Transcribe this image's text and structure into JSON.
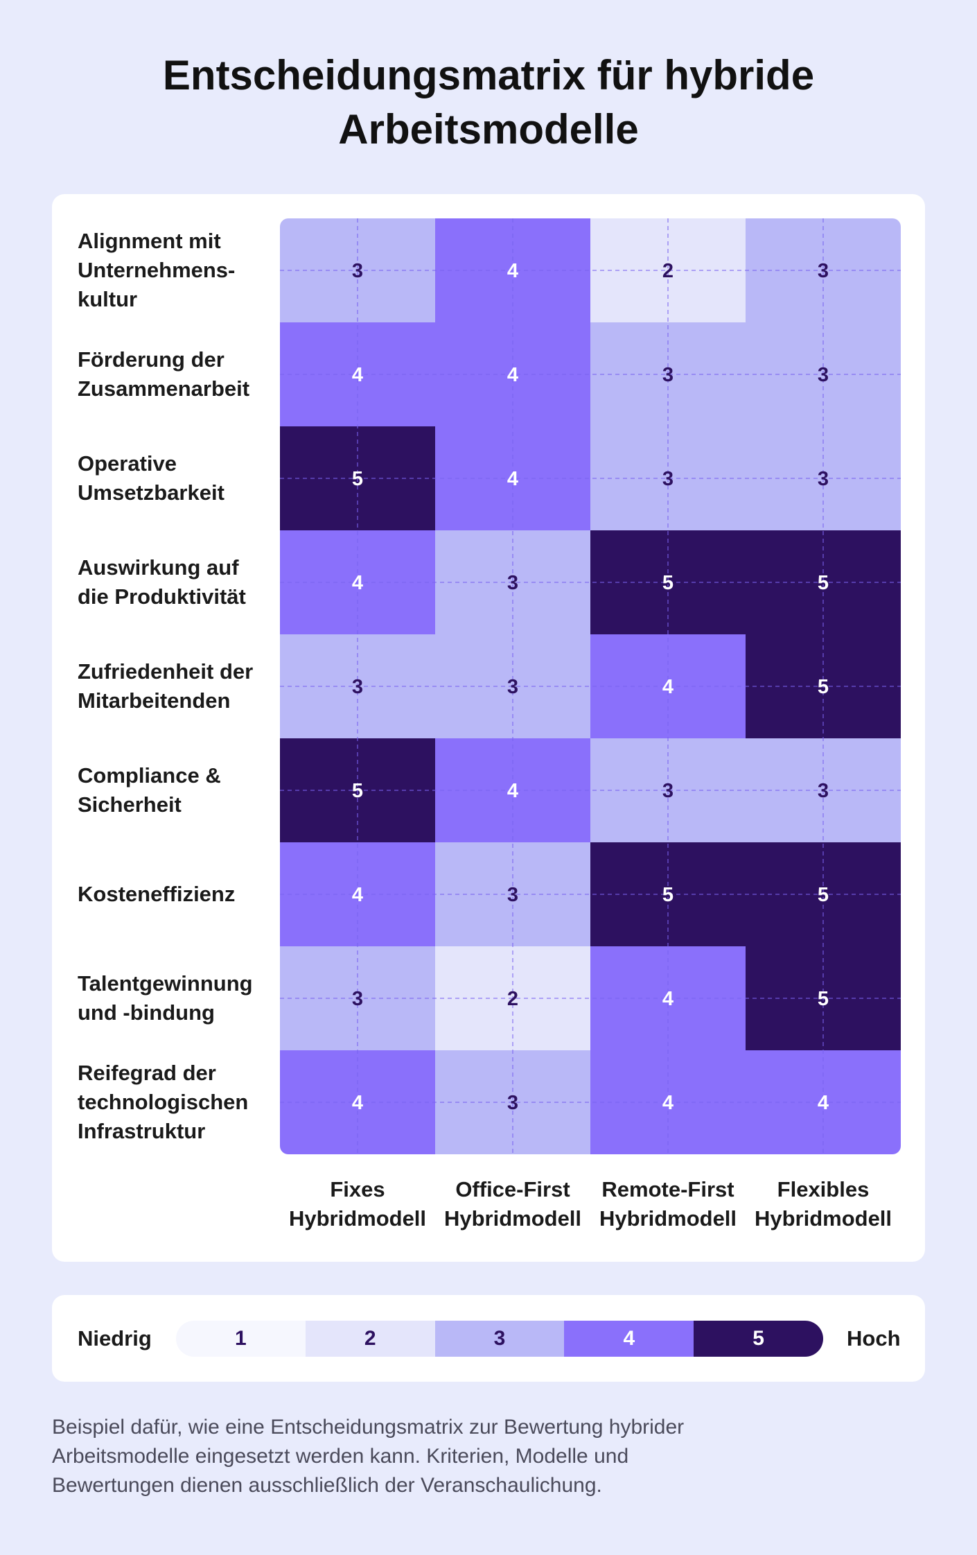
{
  "title": {
    "line1": "Entscheidungsmatrix für hybride",
    "line2": "Arbeitsmodelle"
  },
  "colors": {
    "1": "#f6f7fe",
    "2": "#e4e5fb",
    "3": "#b9b8f7",
    "4": "#8a70fb",
    "5": "#2d1160",
    "text_dark": "#2d1160",
    "text_light": "#ffffff",
    "grid_line": "#7a64f0"
  },
  "chart_data": {
    "type": "heatmap",
    "title": "Entscheidungsmatrix für hybride Arbeitsmodelle",
    "rows": [
      {
        "label_lines": [
          "Alignment mit",
          "Unternehmens-",
          "kultur"
        ]
      },
      {
        "label_lines": [
          "Förderung der",
          "Zusammenarbeit"
        ]
      },
      {
        "label_lines": [
          "Operative",
          "Umsetzbarkeit"
        ]
      },
      {
        "label_lines": [
          "Auswirkung auf",
          "die Produktivität"
        ]
      },
      {
        "label_lines": [
          "Zufriedenheit der",
          "Mitarbeitenden"
        ]
      },
      {
        "label_lines": [
          "Compliance &",
          "Sicherheit"
        ]
      },
      {
        "label_lines": [
          "Kosteneffizienz"
        ]
      },
      {
        "label_lines": [
          "Talentgewinnung",
          "und -bindung"
        ]
      },
      {
        "label_lines": [
          "Reifegrad der",
          "technologischen",
          "Infrastruktur"
        ]
      }
    ],
    "columns": [
      {
        "label_lines": [
          "Fixes",
          "Hybridmodell"
        ]
      },
      {
        "label_lines": [
          "Office-First",
          "Hybridmodell"
        ]
      },
      {
        "label_lines": [
          "Remote-First",
          "Hybridmodell"
        ]
      },
      {
        "label_lines": [
          "Flexibles",
          "Hybridmodell"
        ]
      }
    ],
    "values": [
      [
        3,
        4,
        2,
        3
      ],
      [
        4,
        4,
        3,
        3
      ],
      [
        5,
        4,
        3,
        3
      ],
      [
        4,
        3,
        5,
        5
      ],
      [
        3,
        3,
        4,
        5
      ],
      [
        5,
        4,
        3,
        3
      ],
      [
        4,
        3,
        5,
        5
      ],
      [
        3,
        2,
        4,
        5
      ],
      [
        4,
        3,
        4,
        4
      ]
    ],
    "scale": [
      1,
      2,
      3,
      4,
      5
    ]
  },
  "legend": {
    "low": "Niedrig",
    "high": "Hoch",
    "steps": [
      "1",
      "2",
      "3",
      "4",
      "5"
    ]
  },
  "caption": {
    "line1": "Beispiel dafür, wie eine Entscheidungsmatrix zur Bewertung hybrider",
    "line2": "Arbeitsmodelle eingesetzt werden kann. Kriterien, Modelle und",
    "line3": "Bewertungen dienen ausschließlich der Veranschaulichung."
  }
}
